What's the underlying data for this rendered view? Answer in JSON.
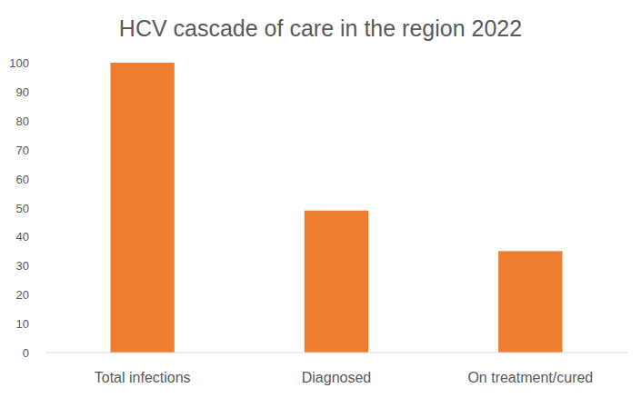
{
  "chart_data": {
    "type": "bar",
    "title": "HCV cascade of care in the region 2022",
    "categories": [
      "Total infections",
      "Diagnosed",
      "On treatment/cured"
    ],
    "values": [
      100,
      49,
      35
    ],
    "color": "#ed7d31",
    "ylim": [
      0,
      100
    ],
    "yticks": [
      0,
      10,
      20,
      30,
      40,
      50,
      60,
      70,
      80,
      90,
      100
    ],
    "grid": false
  }
}
